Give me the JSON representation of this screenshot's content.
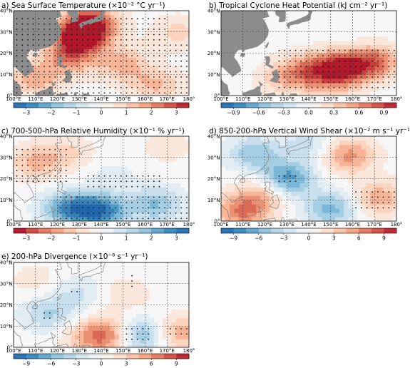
{
  "figure": {
    "panels": [
      {
        "id": "a",
        "title": "a) Sea Surface Temperature (×10⁻² °C yr⁻¹)",
        "colorbar_ticks": [
          "−3",
          "−2",
          "−1",
          "0",
          "1",
          "2",
          "3"
        ],
        "colorbar_range": [
          -3.5,
          3.5
        ],
        "colormap": "RdBu_r"
      },
      {
        "id": "b",
        "title": "b) Tropical Cyclone Heat Potential (kJ cm⁻² yr⁻¹)",
        "colorbar_ticks": [
          "−0.9",
          "−0.6",
          "−0.3",
          "0.0",
          "0.3",
          "0.6",
          "0.9"
        ],
        "colorbar_range": [
          -1.05,
          1.05
        ],
        "colormap": "RdBu_r"
      },
      {
        "id": "c",
        "title": "c) 700-500-hPa Relative Humidity (×10⁻¹ % yr⁻¹)",
        "colorbar_ticks": [
          "−3",
          "−2",
          "−1",
          "0",
          "1",
          "2",
          "3"
        ],
        "colorbar_range": [
          -3.5,
          3.5
        ],
        "colormap": "BrBG"
      },
      {
        "id": "d",
        "title": "d) 850-200-hPa Vertical Wind Shear (×10⁻² m s⁻¹ yr⁻¹)",
        "colorbar_ticks": [
          "−9",
          "−6",
          "−3",
          "0",
          "3",
          "6",
          "9"
        ],
        "colorbar_range": [
          -10.5,
          10.5
        ],
        "colormap": "RdBu_r"
      },
      {
        "id": "e",
        "title": "e) 200-hPa Divergence (×10⁻⁸ s⁻¹ yr⁻¹)",
        "colorbar_ticks": [
          "−9",
          "−6",
          "−3",
          "0",
          "3",
          "6",
          "9"
        ],
        "colorbar_range": [
          -10.5,
          10.5
        ],
        "colormap": "RdBu_r"
      }
    ],
    "lon_ticks": [
      "100°E",
      "110°E",
      "120°E",
      "130°E",
      "140°E",
      "150°E",
      "160°E",
      "170°E",
      "180°"
    ],
    "lat_ticks": [
      "0°",
      "10°N",
      "20°N",
      "30°N",
      "40°N"
    ],
    "colors": {
      "land": "#8c8c8c",
      "grid": "#444444",
      "stipple": "#111111"
    }
  },
  "chart_data": [
    {
      "type": "heatmap",
      "panel": "a",
      "x_range": [
        100,
        180
      ],
      "y_range": [
        0,
        40
      ],
      "features": [
        {
          "lon": 130,
          "lat": 27,
          "value": 3.2
        },
        {
          "lon": 135,
          "lat": 34,
          "value": 3.4
        },
        {
          "lon": 125,
          "lat": 18,
          "value": 1.8
        },
        {
          "lon": 150,
          "lat": 15,
          "value": 1.5
        },
        {
          "lon": 165,
          "lat": 5,
          "value": 1.3
        },
        {
          "lon": 175,
          "lat": 30,
          "value": 0.9
        },
        {
          "lon": 110,
          "lat": 8,
          "value": 1.6
        }
      ]
    },
    {
      "type": "heatmap",
      "panel": "b",
      "x_range": [
        100,
        180
      ],
      "y_range": [
        0,
        40
      ],
      "features": [
        {
          "lon": 155,
          "lat": 13,
          "value": 1.0
        },
        {
          "lon": 140,
          "lat": 12,
          "value": 0.6
        },
        {
          "lon": 170,
          "lat": 16,
          "value": 0.7
        },
        {
          "lon": 128,
          "lat": 8,
          "value": 0.3
        },
        {
          "lon": 160,
          "lat": 33,
          "value": -0.05
        },
        {
          "lon": 150,
          "lat": 3,
          "value": 0.2
        }
      ]
    },
    {
      "type": "heatmap",
      "panel": "c",
      "x_range": [
        100,
        180
      ],
      "y_range": [
        0,
        40
      ],
      "features": [
        {
          "lon": 140,
          "lat": 5,
          "value": 3.0
        },
        {
          "lon": 125,
          "lat": 6,
          "value": 2.5
        },
        {
          "lon": 165,
          "lat": 8,
          "value": 1.8
        },
        {
          "lon": 110,
          "lat": 28,
          "value": -1.4
        },
        {
          "lon": 125,
          "lat": 32,
          "value": -0.8
        },
        {
          "lon": 170,
          "lat": 35,
          "value": -0.5
        },
        {
          "lon": 145,
          "lat": 22,
          "value": 0.4
        }
      ]
    },
    {
      "type": "heatmap",
      "panel": "d",
      "x_range": [
        100,
        180
      ],
      "y_range": [
        0,
        40
      ],
      "features": [
        {
          "lon": 110,
          "lat": 5,
          "value": 7.0
        },
        {
          "lon": 150,
          "lat": 6,
          "value": -6.0
        },
        {
          "lon": 130,
          "lat": 20,
          "value": -8.0
        },
        {
          "lon": 115,
          "lat": 32,
          "value": -5.0
        },
        {
          "lon": 158,
          "lat": 31,
          "value": 6.0
        },
        {
          "lon": 172,
          "lat": 11,
          "value": 5.0
        },
        {
          "lon": 120,
          "lat": 14,
          "value": 4.0
        },
        {
          "lon": 140,
          "lat": 36,
          "value": -3.0
        }
      ]
    },
    {
      "type": "heatmap",
      "panel": "e",
      "x_range": [
        100,
        180
      ],
      "y_range": [
        0,
        40
      ],
      "features": [
        {
          "lon": 157,
          "lat": 6,
          "value": -7.0
        },
        {
          "lon": 145,
          "lat": 6,
          "value": 6.0
        },
        {
          "lon": 176,
          "lat": 7,
          "value": 5.0
        },
        {
          "lon": 135,
          "lat": 5,
          "value": 4.0
        },
        {
          "lon": 116,
          "lat": 16,
          "value": -4.0
        },
        {
          "lon": 130,
          "lat": 26,
          "value": -2.5
        },
        {
          "lon": 150,
          "lat": 25,
          "value": 2.0
        },
        {
          "lon": 110,
          "lat": 32,
          "value": 1.5
        }
      ]
    }
  ]
}
